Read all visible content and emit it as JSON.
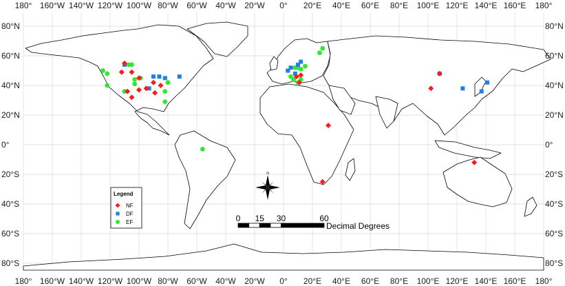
{
  "map": {
    "lon_ticks": [
      "180°",
      "160°W",
      "140°W",
      "120°W",
      "100°W",
      "80°W",
      "60°W",
      "40°W",
      "20°W",
      "0°",
      "20°E",
      "40°E",
      "60°E",
      "80°E",
      "100°E",
      "120°E",
      "140°E",
      "160°E",
      "180°"
    ],
    "lat_ticks": [
      "80°N",
      "60°N",
      "40°N",
      "20°N",
      "0°",
      "20°S",
      "40°S",
      "60°S",
      "80°S"
    ],
    "lon_values": [
      -180,
      -160,
      -140,
      -120,
      -100,
      -80,
      -60,
      -40,
      -20,
      0,
      20,
      40,
      60,
      80,
      100,
      120,
      140,
      160,
      180
    ],
    "lat_values": [
      80,
      60,
      40,
      20,
      0,
      -20,
      -40,
      -60,
      -80
    ]
  },
  "legend": {
    "title": "Legend",
    "items": [
      {
        "label": "NF",
        "shape": "diamond",
        "color": "#ff1a1a"
      },
      {
        "label": "DF",
        "shape": "square",
        "color": "#1f7fe5"
      },
      {
        "label": "EF",
        "shape": "circle",
        "color": "#33e633"
      }
    ]
  },
  "scale_bar": {
    "labels": [
      "0",
      "15",
      "30",
      "60"
    ],
    "values": [
      0,
      15,
      30,
      60
    ],
    "unit": "Decimal Degrees"
  },
  "sites": {
    "NF": [
      [
        -110,
        55
      ],
      [
        -112,
        49
      ],
      [
        -105,
        49
      ],
      [
        -100,
        45
      ],
      [
        -108,
        36
      ],
      [
        -100,
        37
      ],
      [
        -95,
        38
      ],
      [
        -90,
        42
      ],
      [
        -85,
        40
      ],
      [
        -89,
        35
      ],
      [
        -105,
        32
      ],
      [
        9,
        46
      ],
      [
        12,
        47
      ],
      [
        11,
        42
      ],
      [
        102,
        38
      ],
      [
        108,
        48
      ],
      [
        31,
        13
      ],
      [
        27,
        -25
      ],
      [
        132,
        -12
      ]
    ],
    "DF": [
      [
        -93,
        38
      ],
      [
        -90,
        46
      ],
      [
        -86,
        46
      ],
      [
        -82,
        45
      ],
      [
        -72,
        46
      ],
      [
        -110,
        54
      ],
      [
        5,
        52
      ],
      [
        12,
        56
      ],
      [
        3,
        50
      ],
      [
        10,
        54
      ],
      [
        8,
        48
      ],
      [
        108,
        48
      ],
      [
        124,
        38
      ],
      [
        137,
        36
      ],
      [
        141,
        42
      ]
    ],
    "EF": [
      [
        -122,
        40
      ],
      [
        -125,
        50
      ],
      [
        -122,
        48
      ],
      [
        -105,
        54
      ],
      [
        -107,
        54
      ],
      [
        -103,
        44
      ],
      [
        -99,
        45
      ],
      [
        -103,
        41
      ],
      [
        -110,
        36
      ],
      [
        -82,
        36
      ],
      [
        -80,
        42
      ],
      [
        -82,
        29
      ],
      [
        -56,
        -3
      ],
      [
        8,
        52
      ],
      [
        10,
        52
      ],
      [
        12,
        51
      ],
      [
        15,
        53
      ],
      [
        5,
        46
      ],
      [
        7,
        44
      ],
      [
        10,
        42
      ],
      [
        12,
        44
      ],
      [
        25,
        62
      ],
      [
        27,
        65
      ]
    ]
  },
  "compass": {
    "label": "N"
  }
}
